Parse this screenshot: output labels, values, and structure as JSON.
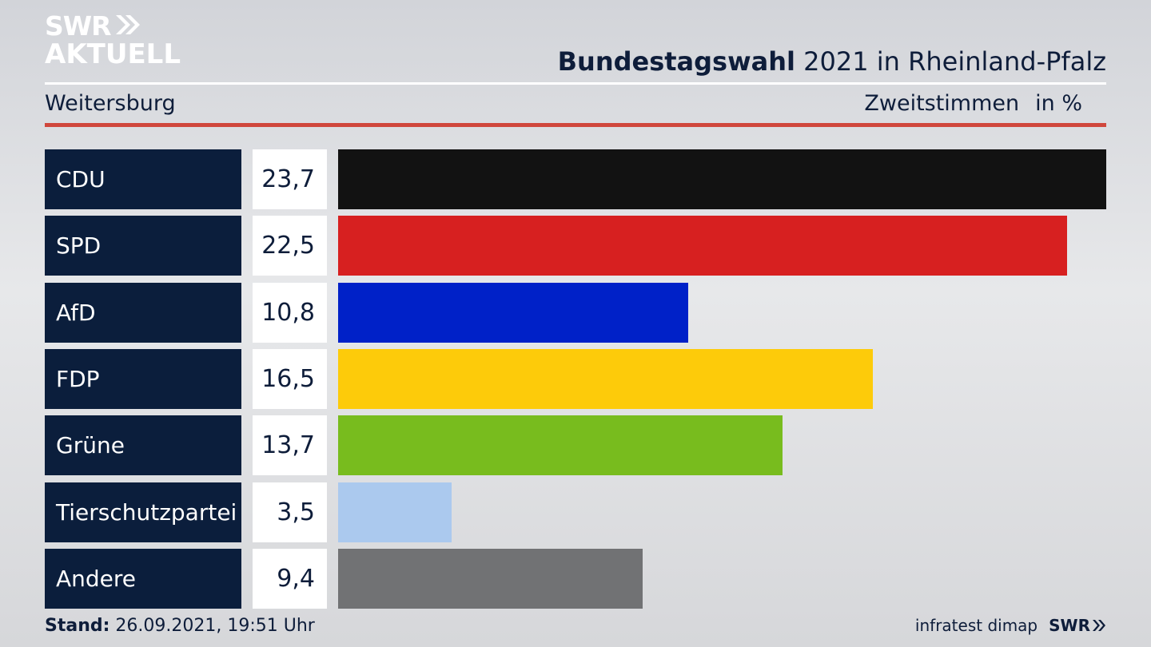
{
  "logo": {
    "line1": "SWR",
    "line2": "AKTUELL"
  },
  "header": {
    "title_bold": "Bundestagswahl",
    "title_rest": "2021 in Rheinland-Pfalz",
    "subtitle": "Weitersburg",
    "measure": "Zweitstimmen",
    "unit": "in %"
  },
  "chart_data": {
    "type": "bar",
    "orientation": "horizontal",
    "title": "Bundestagswahl 2021 in Rheinland-Pfalz",
    "subtitle": "Weitersburg",
    "xlabel": "Zweitstimmen in %",
    "categories": [
      "CDU",
      "SPD",
      "AfD",
      "FDP",
      "Grüne",
      "Tierschutzpartei",
      "Andere"
    ],
    "values": [
      23.7,
      22.5,
      10.8,
      16.5,
      13.7,
      3.5,
      9.4
    ],
    "value_labels": [
      "23,7",
      "22,5",
      "10,8",
      "16,5",
      "13,7",
      "3,5",
      "9,4"
    ],
    "colors": [
      "#121212",
      "#d72020",
      "#0021c8",
      "#fdcb0a",
      "#78bc1e",
      "#abc9ee",
      "#717274"
    ],
    "grid": false,
    "legend": "none"
  },
  "footer": {
    "stand_label": "Stand:",
    "stand_value": "26.09.2021, 19:51 Uhr",
    "source": "infratest dimap",
    "brand": "SWR"
  }
}
